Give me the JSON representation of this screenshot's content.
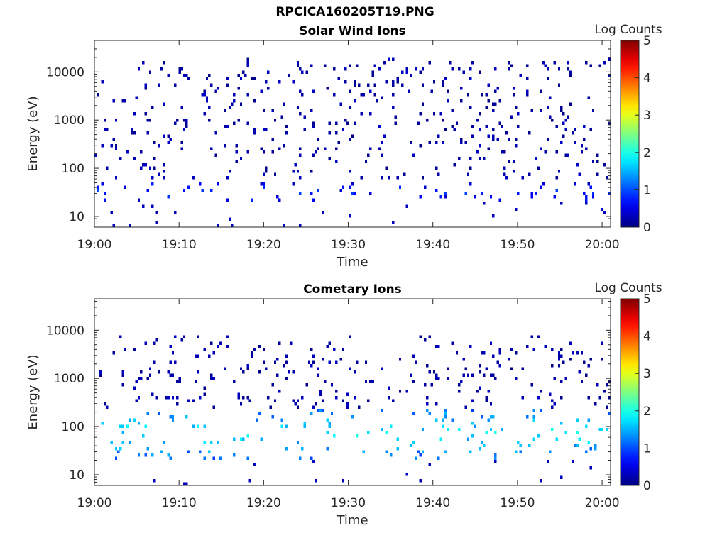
{
  "figure_title": "RPCICA160205T19.PNG",
  "chart_data": [
    {
      "type": "heatmap",
      "title": "Solar Wind Ions",
      "xlabel": "Time",
      "ylabel": "Energy (eV)",
      "colorbar_label": "Log Counts",
      "x_ticks": [
        "19:00",
        "19:10",
        "19:20",
        "19:30",
        "19:40",
        "19:50",
        "20:00"
      ],
      "xlim": [
        "19:00",
        "20:01"
      ],
      "y_scale": "log",
      "y_ticks": [
        10,
        100,
        1000,
        10000
      ],
      "y_tick_labels": [
        "10",
        "100",
        "1000",
        "10000"
      ],
      "ylim": [
        6,
        45000
      ],
      "colorbar_ticks": [
        "0",
        "1",
        "2",
        "3",
        "4",
        "5"
      ],
      "colorbar_range": [
        0,
        5
      ],
      "colormap": "jet",
      "colors": [
        "#00007f",
        "#0000ff",
        "#007fff",
        "#00ffff",
        "#7fff7f",
        "#ffff00",
        "#ff7f00",
        "#ff0000",
        "#7f0000"
      ],
      "pattern": {
        "burst_minutes": [
          1.5,
          3.5,
          6.3,
          9.0,
          11.4,
          14.4,
          16.8,
          19.0,
          21.6,
          25.0,
          28.0,
          30.3,
          33.0,
          36.5,
          39.5,
          41.6,
          44.6,
          47.6,
          50.2,
          52.8,
          56.5,
          59.2
        ],
        "band_energy_ev": [
          20,
          50
        ],
        "band_level": 0.4,
        "scatter_energy_ev": [
          60,
          20000
        ],
        "scatter_level": 0.3
      }
    },
    {
      "type": "heatmap",
      "title": "Cometary Ions",
      "xlabel": "Time",
      "ylabel": "Energy (eV)",
      "colorbar_label": "Log Counts",
      "x_ticks": [
        "19:00",
        "19:10",
        "19:20",
        "19:30",
        "19:40",
        "19:50",
        "20:00"
      ],
      "xlim": [
        "19:00",
        "20:01"
      ],
      "y_scale": "log",
      "y_ticks": [
        10,
        100,
        1000,
        10000
      ],
      "y_tick_labels": [
        "10",
        "100",
        "1000",
        "10000"
      ],
      "ylim": [
        6,
        45000
      ],
      "colorbar_ticks": [
        "0",
        "1",
        "2",
        "3",
        "4",
        "5"
      ],
      "colorbar_range": [
        0,
        5
      ],
      "colormap": "jet",
      "colors": [
        "#00007f",
        "#0000ff",
        "#007fff",
        "#00ffff",
        "#7fff7f",
        "#ffff00",
        "#ff7f00",
        "#ff0000",
        "#7f0000"
      ],
      "pattern": {
        "burst_minutes": [
          1.2,
          3.7,
          6.3,
          8.9,
          11.8,
          14.8,
          18.2,
          21.3,
          24.2,
          27.6,
          30.5,
          33.3,
          36.2,
          39.0,
          41.8,
          44.5,
          47.5,
          50.3,
          53.3,
          56.5,
          59.0
        ],
        "band_energy_ev": [
          20,
          250
        ],
        "band_level": 1.5,
        "scatter_energy_ev": [
          250,
          8000
        ],
        "scatter_level": 0.3
      }
    }
  ]
}
